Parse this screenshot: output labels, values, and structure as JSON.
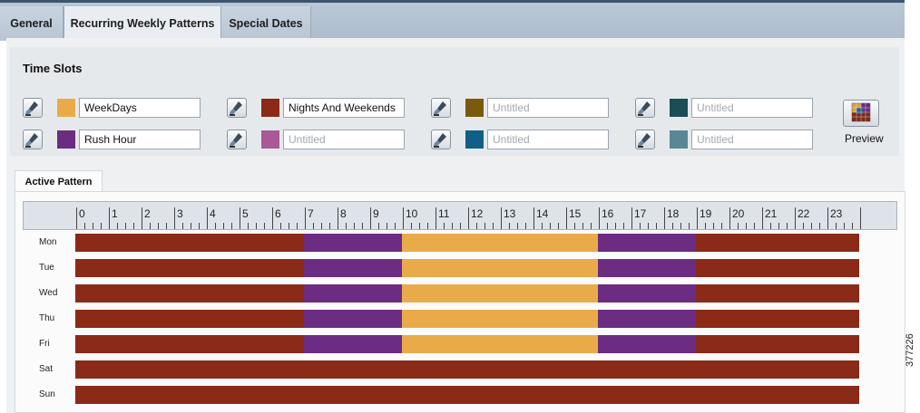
{
  "tabs": [
    {
      "label": "General",
      "active": false
    },
    {
      "label": "Recurring Weekly Patterns",
      "active": true
    },
    {
      "label": "Special Dates",
      "active": false
    }
  ],
  "time_slots": {
    "title": "Time Slots",
    "slots": [
      {
        "name": "WeekDays",
        "placeholder": "",
        "color": "#e9ab4a"
      },
      {
        "name": "Nights And Weekends",
        "placeholder": "",
        "color": "#8a2a17"
      },
      {
        "name": "",
        "placeholder": "Untitled",
        "color": "#7a5a0c"
      },
      {
        "name": "",
        "placeholder": "Untitled",
        "color": "#1a4d55"
      },
      {
        "name": "Rush Hour",
        "placeholder": "",
        "color": "#6b2c82"
      },
      {
        "name": "",
        "placeholder": "Untitled",
        "color": "#a85a98"
      },
      {
        "name": "",
        "placeholder": "Untitled",
        "color": "#0f5f86"
      },
      {
        "name": "",
        "placeholder": "Untitled",
        "color": "#5a8795"
      }
    ],
    "preview_label": "Preview"
  },
  "active_pattern": {
    "tab_label": "Active Pattern",
    "hours": [
      "0",
      "1",
      "2",
      "3",
      "4",
      "5",
      "6",
      "7",
      "8",
      "9",
      "10",
      "11",
      "12",
      "13",
      "14",
      "15",
      "16",
      "17",
      "18",
      "19",
      "20",
      "21",
      "22",
      "23"
    ],
    "days": [
      {
        "label": "Mon",
        "segments": [
          {
            "slot": "Nights And Weekends",
            "start": 0,
            "end": 7
          },
          {
            "slot": "Rush Hour",
            "start": 7,
            "end": 10
          },
          {
            "slot": "WeekDays",
            "start": 10,
            "end": 16
          },
          {
            "slot": "Rush Hour",
            "start": 16,
            "end": 19
          },
          {
            "slot": "Nights And Weekends",
            "start": 19,
            "end": 24
          }
        ]
      },
      {
        "label": "Tue",
        "segments": [
          {
            "slot": "Nights And Weekends",
            "start": 0,
            "end": 7
          },
          {
            "slot": "Rush Hour",
            "start": 7,
            "end": 10
          },
          {
            "slot": "WeekDays",
            "start": 10,
            "end": 16
          },
          {
            "slot": "Rush Hour",
            "start": 16,
            "end": 19
          },
          {
            "slot": "Nights And Weekends",
            "start": 19,
            "end": 24
          }
        ]
      },
      {
        "label": "Wed",
        "segments": [
          {
            "slot": "Nights And Weekends",
            "start": 0,
            "end": 7
          },
          {
            "slot": "Rush Hour",
            "start": 7,
            "end": 10
          },
          {
            "slot": "WeekDays",
            "start": 10,
            "end": 16
          },
          {
            "slot": "Rush Hour",
            "start": 16,
            "end": 19
          },
          {
            "slot": "Nights And Weekends",
            "start": 19,
            "end": 24
          }
        ]
      },
      {
        "label": "Thu",
        "segments": [
          {
            "slot": "Nights And Weekends",
            "start": 0,
            "end": 7
          },
          {
            "slot": "Rush Hour",
            "start": 7,
            "end": 10
          },
          {
            "slot": "WeekDays",
            "start": 10,
            "end": 16
          },
          {
            "slot": "Rush Hour",
            "start": 16,
            "end": 19
          },
          {
            "slot": "Nights And Weekends",
            "start": 19,
            "end": 24
          }
        ]
      },
      {
        "label": "Fri",
        "segments": [
          {
            "slot": "Nights And Weekends",
            "start": 0,
            "end": 7
          },
          {
            "slot": "Rush Hour",
            "start": 7,
            "end": 10
          },
          {
            "slot": "WeekDays",
            "start": 10,
            "end": 16
          },
          {
            "slot": "Rush Hour",
            "start": 16,
            "end": 19
          },
          {
            "slot": "Nights And Weekends",
            "start": 19,
            "end": 24
          }
        ]
      },
      {
        "label": "Sat",
        "segments": [
          {
            "slot": "Nights And Weekends",
            "start": 0,
            "end": 24
          }
        ]
      },
      {
        "label": "Sun",
        "segments": [
          {
            "slot": "Nights And Weekends",
            "start": 0,
            "end": 24
          }
        ]
      }
    ]
  },
  "figure_id": "377226"
}
